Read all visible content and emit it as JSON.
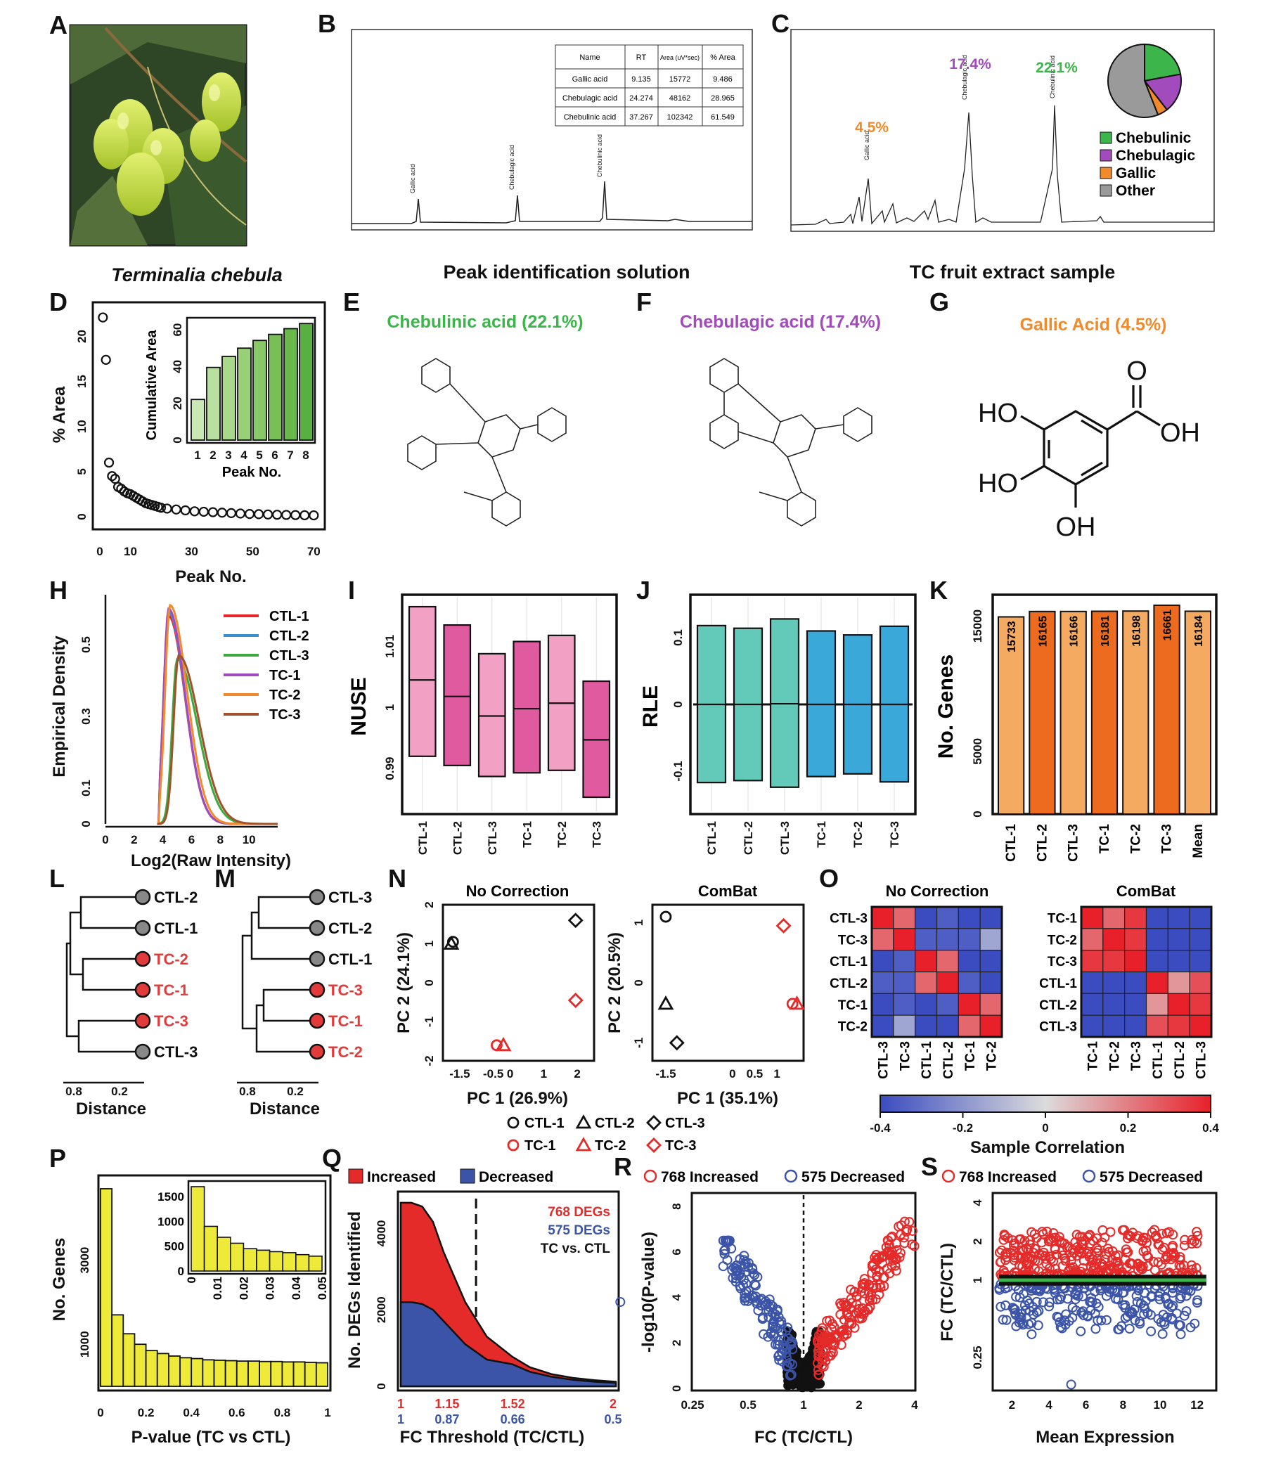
{
  "colors": {
    "chebulinic": "#3cb54a",
    "chebulagic": "#a24bbd",
    "gallic": "#f08a2a",
    "other": "#9a9a9a",
    "nuse_light": "#f2a0c4",
    "nuse_dark": "#e05aa0",
    "rle_light": "#63c9b8",
    "rle_dark": "#3aa8d8",
    "bar_light": "#f4aa60",
    "bar_dark": "#ec6b1f",
    "ctl_node": "#888888",
    "tc_node": "#e23b3b",
    "increased": "#e52a2a",
    "decreased": "#3b54a8",
    "hist_fill": "#eeea3a"
  },
  "panels": {
    "A": {
      "letter": "A",
      "caption": "Terminalia chebula"
    },
    "B": {
      "letter": "B",
      "caption": "Peak identification solution",
      "table": {
        "headers": [
          "Name",
          "RT",
          "Area (uV*sec)",
          "% Area"
        ],
        "rows": [
          [
            "Gallic acid",
            "9.135",
            "15772",
            "9.486"
          ],
          [
            "Chebulagic acid",
            "24.274",
            "48162",
            "28.965"
          ],
          [
            "Chebulinic acid",
            "37.267",
            "102342",
            "61.549"
          ]
        ]
      },
      "peak_labels": [
        "Gallic acid",
        "Chebulagic acid",
        "Chebulinic acid"
      ]
    },
    "C": {
      "letter": "C",
      "caption": "TC fruit extract sample",
      "pct_labels": [
        "4.5%",
        "17.4%",
        "22.1%"
      ],
      "peak_labels": [
        "Gallic acid",
        "Chebulagic acid",
        "Chebulinic acid"
      ],
      "legend": [
        "Chebulinic",
        "Chebulagic",
        "Gallic",
        "Other"
      ]
    },
    "D": {
      "letter": "D",
      "xlabel": "Peak No.",
      "ylabel": "% Area",
      "inset_xlabel": "Peak No.",
      "inset_ylabel": "Cumulative Area"
    },
    "E": {
      "letter": "E",
      "title": "Chebulinic acid (22.1%)"
    },
    "F": {
      "letter": "F",
      "title": "Chebulagic acid (17.4%)"
    },
    "G": {
      "letter": "G",
      "title": "Gallic Acid (4.5%)",
      "atoms": {
        "o_top": "O",
        "oh_right": "OH",
        "ho_1": "HO",
        "ho_2": "HO",
        "oh_bottom": "OH"
      }
    },
    "H": {
      "letter": "H",
      "xlabel": "Log2(Raw Intensity)",
      "ylabel": "Empirical Density"
    },
    "I": {
      "letter": "I",
      "ylabel": "NUSE"
    },
    "J": {
      "letter": "J",
      "ylabel": "RLE"
    },
    "K": {
      "letter": "K",
      "ylabel": "No. Genes"
    },
    "L": {
      "letter": "L",
      "xlabel": "Distance",
      "ticks": [
        "0.8",
        "0.2"
      ],
      "leaves": [
        [
          "CTL-2",
          "ctl"
        ],
        [
          "CTL-1",
          "ctl"
        ],
        [
          "TC-2",
          "tc"
        ],
        [
          "TC-1",
          "tc"
        ],
        [
          "TC-3",
          "tc"
        ],
        [
          "CTL-3",
          "ctl"
        ]
      ]
    },
    "M": {
      "letter": "M",
      "xlabel": "Distance",
      "ticks": [
        "0.8",
        "0.2"
      ],
      "leaves": [
        [
          "CTL-3",
          "ctl"
        ],
        [
          "CTL-2",
          "ctl"
        ],
        [
          "CTL-1",
          "ctl"
        ],
        [
          "TC-3",
          "tc"
        ],
        [
          "TC-1",
          "tc"
        ],
        [
          "TC-2",
          "tc"
        ]
      ]
    },
    "N": {
      "letter": "N",
      "title_left": "No Correction",
      "title_right": "ComBat",
      "xlabel_left": "PC 1 (26.9%)",
      "ylabel_left": "PC 2 (24.1%)",
      "xlabel_right": "PC 1 (35.1%)",
      "ylabel_right": "PC 2 (20.5%)",
      "legend_row1": [
        "CTL-1",
        "CTL-2",
        "CTL-3"
      ],
      "legend_row2": [
        "TC-1",
        "TC-2",
        "TC-3"
      ]
    },
    "O": {
      "letter": "O",
      "title_left": "No Correction",
      "title_right": "ComBat",
      "labels_left": [
        "CTL-3",
        "TC-3",
        "CTL-1",
        "CTL-2",
        "TC-1",
        "TC-2"
      ],
      "labels_right": [
        "TC-1",
        "TC-2",
        "TC-3",
        "CTL-1",
        "CTL-2",
        "CTL-3"
      ],
      "colorbar_label": "Sample Correlation",
      "colorbar_ticks": [
        "-0.4",
        "-0.2",
        "0",
        "0.2",
        "0.4"
      ]
    },
    "P": {
      "letter": "P",
      "xlabel": "P-value (TC vs CTL)",
      "ylabel": "No. Genes"
    },
    "Q": {
      "letter": "Q",
      "legend": [
        "Increased",
        "Decreased"
      ],
      "ylabel": "No. DEGs Identified",
      "xlabel": "FC Threshold (TC/CTL)",
      "annot": [
        "768 DEGs",
        "575 DEGs",
        "TC vs. CTL"
      ],
      "ticks_top": [
        "1",
        "1.15",
        "1.52",
        "2"
      ],
      "ticks_bottom": [
        "1",
        "0.87",
        "0.66",
        "0.5"
      ]
    },
    "R": {
      "letter": "R",
      "legend": [
        "768 Increased",
        "575 Decreased"
      ],
      "ylabel": "-log10(P-value)",
      "xlabel": "FC (TC/CTL)"
    },
    "S": {
      "letter": "S",
      "legend": [
        "768 Increased",
        "575 Decreased"
      ],
      "ylabel": "FC (TC/CTL)",
      "xlabel": "Mean Expression"
    }
  },
  "chart_data": [
    {
      "id": "B",
      "type": "line",
      "title": "Peak identification solution",
      "x": [
        0,
        5,
        9.135,
        15,
        24.274,
        30,
        37.267,
        45,
        55,
        60
      ],
      "y": [
        0,
        0.0005,
        0.009,
        0.0005,
        0.011,
        0.001,
        0.017,
        0.001,
        0.001,
        0.001
      ],
      "xlim": [
        0,
        60
      ]
    },
    {
      "id": "C",
      "type": "pie",
      "title": "TC fruit extract sample",
      "labels": [
        "Chebulinic",
        "Chebulagic",
        "Gallic",
        "Other"
      ],
      "values": [
        22.1,
        17.4,
        4.5,
        56.0
      ]
    },
    {
      "id": "D",
      "type": "scatter",
      "xlabel": "Peak No.",
      "ylabel": "% Area",
      "x": [
        1,
        2,
        3,
        4,
        5,
        6,
        7,
        8,
        9,
        10,
        11,
        12,
        13,
        14,
        15,
        16,
        17,
        18,
        19,
        20,
        22,
        25,
        28,
        31,
        34,
        37,
        40,
        43,
        46,
        49,
        52,
        55,
        58,
        61,
        64,
        67,
        70
      ],
      "y": [
        22.1,
        17.4,
        6.0,
        4.5,
        4.2,
        3.3,
        3.1,
        2.8,
        2.6,
        2.5,
        2.3,
        2.1,
        1.9,
        1.7,
        1.5,
        1.4,
        1.3,
        1.2,
        1.1,
        1.0,
        0.9,
        0.8,
        0.7,
        0.6,
        0.55,
        0.5,
        0.45,
        0.4,
        0.35,
        0.3,
        0.28,
        0.25,
        0.22,
        0.2,
        0.18,
        0.16,
        0.15
      ],
      "xlim": [
        0,
        72
      ],
      "ylim": [
        0,
        23
      ]
    },
    {
      "id": "D-inset",
      "type": "bar",
      "xlabel": "Peak No.",
      "ylabel": "Cumulative Area",
      "categories": [
        "1",
        "2",
        "3",
        "4",
        "5",
        "6",
        "7",
        "8"
      ],
      "values": [
        22.1,
        39.5,
        45.5,
        50.0,
        54.2,
        57.5,
        60.6,
        63.4
      ],
      "ylim": [
        0,
        65
      ]
    },
    {
      "id": "H",
      "type": "line",
      "xlabel": "Log2(Raw Intensity)",
      "ylabel": "Empirical Density",
      "xlim": [
        0,
        12
      ],
      "ylim": [
        0,
        0.6
      ],
      "series": [
        {
          "name": "CTL-1",
          "peak_x": 4.4,
          "peak_y": 0.58
        },
        {
          "name": "CTL-2",
          "peak_x": 4.4,
          "peak_y": 0.59
        },
        {
          "name": "CTL-3",
          "peak_x": 5.0,
          "peak_y": 0.46
        },
        {
          "name": "TC-1",
          "peak_x": 4.4,
          "peak_y": 0.6
        },
        {
          "name": "TC-2",
          "peak_x": 4.5,
          "peak_y": 0.61
        },
        {
          "name": "TC-3",
          "peak_x": 5.1,
          "peak_y": 0.47
        }
      ]
    },
    {
      "id": "I",
      "type": "box",
      "ylabel": "NUSE",
      "categories": [
        "CTL-1",
        "CTL-2",
        "CTL-3",
        "TC-1",
        "TC-2",
        "TC-3"
      ],
      "q1": [
        0.992,
        0.9905,
        0.9887,
        0.9893,
        0.9897,
        0.9853
      ],
      "median": [
        1.0045,
        1.0018,
        0.9986,
        0.9998,
        1.0007,
        0.9947
      ],
      "q3": [
        1.0165,
        1.0135,
        1.0088,
        1.0108,
        1.0118,
        1.0043
      ],
      "ylim": [
        0.983,
        1.018
      ]
    },
    {
      "id": "J",
      "type": "box",
      "ylabel": "RLE",
      "categories": [
        "CTL-1",
        "CTL-2",
        "CTL-3",
        "TC-1",
        "TC-2",
        "TC-3"
      ],
      "q1": [
        -0.117,
        -0.114,
        -0.124,
        -0.108,
        -0.104,
        -0.116
      ],
      "median": [
        0.0,
        0.0,
        0.001,
        0.0,
        0.0,
        0.0
      ],
      "q3": [
        0.118,
        0.114,
        0.128,
        0.11,
        0.104,
        0.117
      ],
      "ylim": [
        -0.16,
        0.16
      ]
    },
    {
      "id": "K",
      "type": "bar",
      "ylabel": "No. Genes",
      "categories": [
        "CTL-1",
        "CTL-2",
        "CTL-3",
        "TC-1",
        "TC-2",
        "TC-3",
        "Mean"
      ],
      "values": [
        15733,
        16165,
        16166,
        16181,
        16198,
        16661,
        16184
      ],
      "ylim": [
        0,
        17500
      ],
      "yticks": [
        0,
        5000,
        15000
      ]
    },
    {
      "id": "N-left",
      "type": "scatter",
      "title": "No Correction",
      "xlabel": "PC 1 (26.9%)",
      "ylabel": "PC 2 (24.1%)",
      "xlim": [
        -2,
        2.5
      ],
      "ylim": [
        -2,
        2
      ],
      "series": [
        {
          "name": "CTL-1",
          "x": [
            -1.7
          ],
          "y": [
            1.05
          ]
        },
        {
          "name": "CTL-2",
          "x": [
            -1.75
          ],
          "y": [
            1.0
          ]
        },
        {
          "name": "CTL-3",
          "x": [
            1.95
          ],
          "y": [
            1.6
          ]
        },
        {
          "name": "TC-1",
          "x": [
            -0.4
          ],
          "y": [
            -1.6
          ]
        },
        {
          "name": "TC-2",
          "x": [
            -0.2
          ],
          "y": [
            -1.6
          ]
        },
        {
          "name": "TC-3",
          "x": [
            1.95
          ],
          "y": [
            -0.45
          ]
        }
      ]
    },
    {
      "id": "N-right",
      "type": "scatter",
      "title": "ComBat",
      "xlabel": "PC 1 (35.1%)",
      "ylabel": "PC 2 (20.5%)",
      "xlim": [
        -1.8,
        1.6
      ],
      "ylim": [
        -1.3,
        1.3
      ],
      "series": [
        {
          "name": "CTL-1",
          "x": [
            -1.5
          ],
          "y": [
            1.1
          ]
        },
        {
          "name": "CTL-2",
          "x": [
            -1.5
          ],
          "y": [
            -0.35
          ]
        },
        {
          "name": "CTL-3",
          "x": [
            -1.25
          ],
          "y": [
            -1.0
          ]
        },
        {
          "name": "TC-1",
          "x": [
            1.35
          ],
          "y": [
            -0.35
          ]
        },
        {
          "name": "TC-2",
          "x": [
            1.45
          ],
          "y": [
            -0.35
          ]
        },
        {
          "name": "TC-3",
          "x": [
            1.15
          ],
          "y": [
            0.95
          ]
        }
      ]
    },
    {
      "id": "O-left",
      "type": "heatmap",
      "title": "No Correction",
      "labels": [
        "CTL-3",
        "TC-3",
        "CTL-1",
        "CTL-2",
        "TC-1",
        "TC-2"
      ],
      "values": [
        [
          0.4,
          0.25,
          -0.4,
          -0.35,
          -0.4,
          -0.4
        ],
        [
          0.25,
          0.4,
          -0.35,
          -0.35,
          -0.35,
          -0.15
        ],
        [
          -0.4,
          -0.35,
          0.4,
          0.25,
          -0.4,
          -0.4
        ],
        [
          -0.35,
          -0.35,
          0.25,
          0.4,
          -0.35,
          -0.4
        ],
        [
          -0.4,
          -0.35,
          -0.4,
          -0.35,
          0.4,
          0.25
        ],
        [
          -0.4,
          -0.15,
          -0.4,
          -0.4,
          0.25,
          0.4
        ]
      ]
    },
    {
      "id": "O-right",
      "type": "heatmap",
      "title": "ComBat",
      "labels": [
        "TC-1",
        "TC-2",
        "TC-3",
        "CTL-1",
        "CTL-2",
        "CTL-3"
      ],
      "values": [
        [
          0.4,
          0.25,
          0.35,
          -0.4,
          -0.4,
          -0.4
        ],
        [
          0.25,
          0.4,
          0.35,
          -0.4,
          -0.4,
          -0.4
        ],
        [
          0.35,
          0.35,
          0.4,
          -0.4,
          -0.4,
          -0.4
        ],
        [
          -0.4,
          -0.4,
          -0.4,
          0.4,
          0.15,
          0.3
        ],
        [
          -0.4,
          -0.4,
          -0.4,
          0.15,
          0.4,
          0.35
        ],
        [
          -0.4,
          -0.4,
          -0.4,
          0.3,
          0.35,
          0.4
        ]
      ],
      "colorbar_range": [
        -0.4,
        0.4
      ]
    },
    {
      "id": "P",
      "type": "bar",
      "xlabel": "P-value (TC vs CTL)",
      "ylabel": "No. Genes",
      "bins_start": [
        0,
        0.05,
        0.1,
        0.15,
        0.2,
        0.25,
        0.3,
        0.35,
        0.4,
        0.45,
        0.5,
        0.55,
        0.6,
        0.65,
        0.7,
        0.75,
        0.8,
        0.85,
        0.9,
        0.95
      ],
      "values": [
        4700,
        1700,
        1250,
        1000,
        850,
        780,
        720,
        680,
        660,
        630,
        620,
        610,
        600,
        600,
        590,
        590,
        580,
        580,
        570,
        560
      ],
      "xlim": [
        0,
        1
      ],
      "ylim": [
        0,
        4800
      ]
    },
    {
      "id": "P-inset",
      "type": "bar",
      "bins_start": [
        0,
        0.005,
        0.01,
        0.015,
        0.02,
        0.025,
        0.03,
        0.035,
        0.04,
        0.045
      ],
      "values": [
        1700,
        900,
        680,
        560,
        450,
        420,
        390,
        370,
        330,
        300
      ],
      "xlim": [
        0,
        0.05
      ],
      "ylim": [
        0,
        1700
      ]
    },
    {
      "id": "Q",
      "type": "area",
      "xlabel": "FC Threshold (TC/CTL)",
      "ylabel": "No. DEGs Identified",
      "x": [
        1.0,
        1.05,
        1.1,
        1.15,
        1.2,
        1.3,
        1.4,
        1.52,
        1.6,
        1.7,
        1.8,
        1.9,
        2.0
      ],
      "series": [
        {
          "name": "Increased",
          "values": [
            4800,
            4800,
            4700,
            4300,
            3500,
            2200,
            1300,
            768,
            500,
            320,
            220,
            160,
            120
          ]
        },
        {
          "name": "Decreased",
          "values": [
            2200,
            2200,
            2150,
            2000,
            1700,
            1100,
            700,
            575,
            380,
            250,
            170,
            120,
            90
          ]
        }
      ],
      "ylim": [
        0,
        5000
      ]
    },
    {
      "id": "R",
      "type": "scatter",
      "xlabel": "FC (TC/CTL)",
      "ylabel": "-log10(P-value)",
      "xscale": "log2",
      "xticks": [
        0.25,
        0.5,
        1,
        2,
        4
      ],
      "ylim": [
        0,
        8.5
      ],
      "series": [
        {
          "name": "768 Increased",
          "count": 768
        },
        {
          "name": "575 Decreased",
          "count": 575
        }
      ]
    },
    {
      "id": "S",
      "type": "scatter",
      "xlabel": "Mean Expression",
      "ylabel": "FC (TC/CTL)",
      "yscale": "log2",
      "yticks": [
        0.25,
        1,
        2,
        4
      ],
      "xlim": [
        1,
        13
      ],
      "series": [
        {
          "name": "768 Increased",
          "count": 768
        },
        {
          "name": "575 Decreased",
          "count": 575
        }
      ]
    }
  ]
}
